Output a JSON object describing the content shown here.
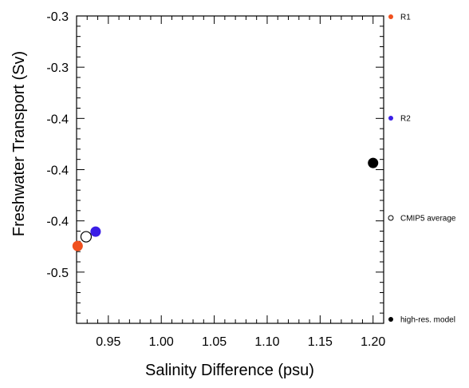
{
  "chart_data": {
    "type": "scatter",
    "title": "",
    "xlabel": "Salinity Difference (psu)",
    "ylabel": "Freshwater Transport (Sv)",
    "xlim": [
      0.92,
      1.21
    ],
    "ylim": [
      -0.55,
      -0.25
    ],
    "x_ticks": [
      0.95,
      1.0,
      1.05,
      1.1,
      1.15,
      1.2
    ],
    "x_tick_labels": [
      "0.95",
      "1.00",
      "1.05",
      "1.10",
      "1.15",
      "1.20"
    ],
    "y_ticks": [
      -0.25,
      -0.3,
      -0.35,
      -0.4,
      -0.45,
      -0.5
    ],
    "y_tick_labels": [
      "-0.3",
      "-0.3",
      "-0.4",
      "-0.4",
      "-0.4",
      "-0.5"
    ],
    "grid": false,
    "legend_position": "right",
    "points": [
      {
        "name": "R1",
        "x": 0.921,
        "y": -0.4745,
        "color": "#f0501e",
        "filled": true
      },
      {
        "name": "R2",
        "x": 0.938,
        "y": -0.4605,
        "color": "#3a1ee6",
        "filled": true
      },
      {
        "name": "CMIP5 average",
        "x": 0.929,
        "y": -0.4655,
        "color": "#000000",
        "filled": false
      },
      {
        "name": "high-res. model",
        "x": 1.2,
        "y": -0.3935,
        "color": "#000000",
        "filled": true
      }
    ],
    "legend": [
      {
        "label": "R1",
        "color": "#f0501e",
        "filled": true
      },
      {
        "label": "R2",
        "color": "#3a1ee6",
        "filled": true
      },
      {
        "label": "CMIP5 average",
        "color": "#000000",
        "filled": false
      },
      {
        "label": "high-res. model",
        "color": "#000000",
        "filled": true
      }
    ]
  }
}
